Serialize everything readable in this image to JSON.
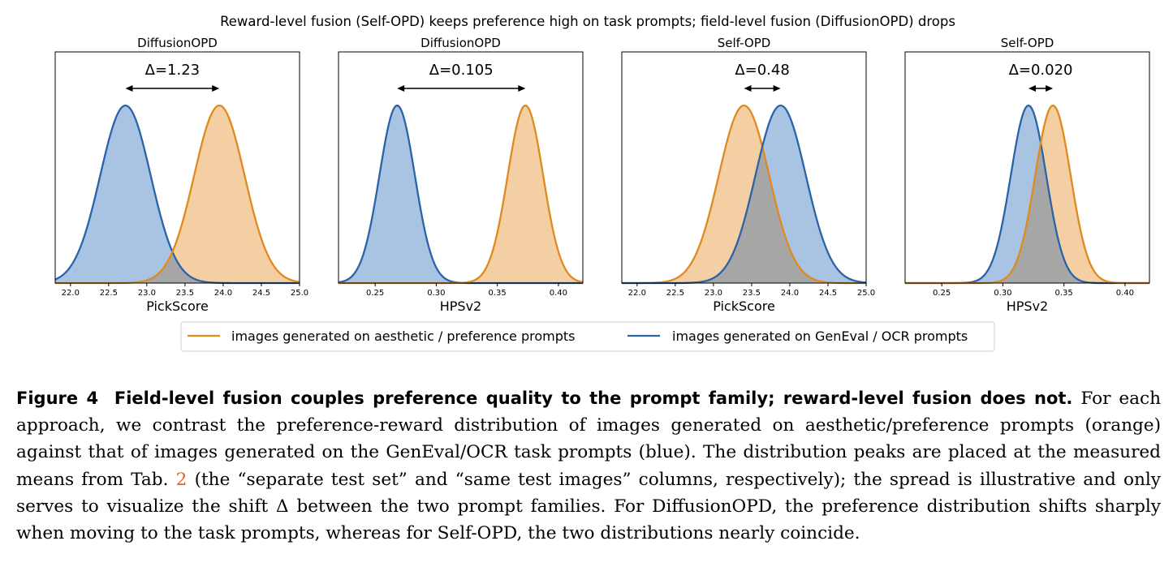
{
  "figure": {
    "suptitle": "Reward-level fusion (Self-OPD) keeps preference high on task prompts; field-level fusion (DiffusionOPD) drops",
    "legend": [
      {
        "label": "images generated on aesthetic / preference prompts",
        "color": "#e08a1e"
      },
      {
        "label": "images generated on GenEval / OCR prompts",
        "color": "#2a63a8"
      }
    ],
    "colors": {
      "orange_line": "#e08a1e",
      "orange_fill": "#f4cfa3",
      "blue_line": "#2a63a8",
      "blue_fill": "#a9c4e3",
      "overlap_fill": "#a6a6a6"
    }
  },
  "chart_data": [
    {
      "type": "area",
      "title": "DiffusionOPD",
      "xlabel": "PickScore",
      "xlim": [
        21.8,
        25.0
      ],
      "xticks": [
        "22.0",
        "22.5",
        "23.0",
        "23.5",
        "24.0",
        "24.5",
        "25.0"
      ],
      "delta_label": "Δ=1.23",
      "series": [
        {
          "mean": 22.72,
          "sd": 0.33,
          "color": "blue"
        },
        {
          "mean": 23.95,
          "sd": 0.33,
          "color": "orange"
        }
      ]
    },
    {
      "type": "area",
      "title": "DiffusionOPD",
      "xlabel": "HPSv2",
      "xlim": [
        0.22,
        0.42
      ],
      "xticks": [
        "0.25",
        "0.30",
        "0.35",
        "0.40"
      ],
      "delta_label": "Δ=0.105",
      "series": [
        {
          "mean": 0.268,
          "sd": 0.0145,
          "color": "blue"
        },
        {
          "mean": 0.373,
          "sd": 0.0145,
          "color": "orange"
        }
      ]
    },
    {
      "type": "area",
      "title": "Self-OPD",
      "xlabel": "PickScore",
      "xlim": [
        21.8,
        25.0
      ],
      "xticks": [
        "22.0",
        "22.5",
        "23.0",
        "23.5",
        "24.0",
        "24.5",
        "25.0"
      ],
      "delta_label": "Δ=0.48",
      "series": [
        {
          "mean": 23.4,
          "sd": 0.33,
          "color": "orange"
        },
        {
          "mean": 23.88,
          "sd": 0.33,
          "color": "blue"
        }
      ]
    },
    {
      "type": "area",
      "title": "Self-OPD",
      "xlabel": "HPSv2",
      "xlim": [
        0.22,
        0.42
      ],
      "xticks": [
        "0.25",
        "0.30",
        "0.35",
        "0.40"
      ],
      "delta_label": "Δ=0.020",
      "series": [
        {
          "mean": 0.321,
          "sd": 0.0145,
          "color": "blue"
        },
        {
          "mean": 0.341,
          "sd": 0.0145,
          "color": "orange"
        }
      ]
    }
  ],
  "caption": {
    "label": "Figure 4",
    "bold_title": "Field-level fusion couples preference quality to the prompt family; reward-level fusion does not.",
    "text_1": "For each approach, we contrast the preference-reward distribution of images generated on aesthetic/preference prompts (orange) against that of images generated on the GenEval/OCR task prompts (blue). The distribution peaks are placed at the measured means from Tab.",
    "ref": "2",
    "text_2": "(the “separate test set” and “same test images” columns, respectively); the spread is illustrative and only serves to visualize the shift Δ between the two prompt families. For DiffusionOPD, the preference distribution shifts sharply when moving to the task prompts, whereas for Self-OPD, the two distributions nearly coincide."
  }
}
